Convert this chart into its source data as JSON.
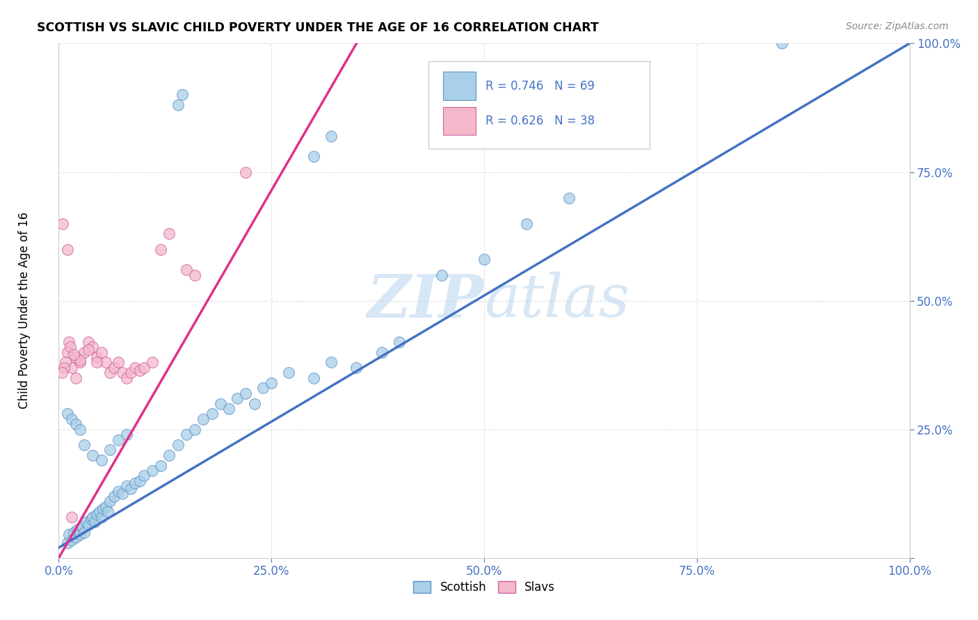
{
  "title": "SCOTTISH VS SLAVIC CHILD POVERTY UNDER THE AGE OF 16 CORRELATION CHART",
  "source": "Source: ZipAtlas.com",
  "ylabel": "Child Poverty Under the Age of 16",
  "xlim": [
    0.0,
    100.0
  ],
  "ylim": [
    0.0,
    100.0
  ],
  "xticks": [
    0.0,
    25.0,
    50.0,
    75.0,
    100.0
  ],
  "yticks": [
    0.0,
    25.0,
    50.0,
    75.0,
    100.0
  ],
  "xticklabels": [
    "0.0%",
    "25.0%",
    "50.0%",
    "75.0%",
    "100.0%"
  ],
  "yticklabels": [
    "",
    "25.0%",
    "50.0%",
    "75.0%",
    "100.0%"
  ],
  "scottish_color": "#a8d0e8",
  "slavs_color": "#f4b8cb",
  "scottish_edge_color": "#6090c8",
  "slavs_edge_color": "#d060a0",
  "scottish_line_color": "#4472c4",
  "slavs_line_color": "#e0308c",
  "tick_color": "#4472c4",
  "R_scottish": 0.746,
  "N_scottish": 69,
  "R_slavs": 0.626,
  "N_slavs": 38,
  "watermark_ZIP": "ZIP",
  "watermark_atlas": "atlas",
  "blue_line_x0": 0.0,
  "blue_line_y0": 2.0,
  "blue_line_x1": 100.0,
  "blue_line_y1": 100.0,
  "pink_line_x0": 0.0,
  "pink_line_y0": 0.0,
  "pink_line_x1": 35.0,
  "pink_line_y1": 100.0,
  "scottish_points": [
    [
      1.0,
      3.0
    ],
    [
      1.2,
      4.5
    ],
    [
      1.5,
      3.5
    ],
    [
      1.8,
      5.0
    ],
    [
      2.0,
      4.0
    ],
    [
      2.2,
      5.5
    ],
    [
      2.5,
      4.5
    ],
    [
      2.8,
      6.0
    ],
    [
      3.0,
      5.0
    ],
    [
      3.2,
      7.0
    ],
    [
      3.5,
      6.5
    ],
    [
      3.8,
      7.5
    ],
    [
      4.0,
      8.0
    ],
    [
      4.2,
      7.0
    ],
    [
      4.5,
      8.5
    ],
    [
      4.8,
      9.0
    ],
    [
      5.0,
      8.0
    ],
    [
      5.2,
      9.5
    ],
    [
      5.5,
      10.0
    ],
    [
      5.8,
      9.0
    ],
    [
      6.0,
      11.0
    ],
    [
      6.5,
      12.0
    ],
    [
      7.0,
      13.0
    ],
    [
      7.5,
      12.5
    ],
    [
      8.0,
      14.0
    ],
    [
      8.5,
      13.5
    ],
    [
      9.0,
      14.5
    ],
    [
      9.5,
      15.0
    ],
    [
      10.0,
      16.0
    ],
    [
      11.0,
      17.0
    ],
    [
      12.0,
      18.0
    ],
    [
      13.0,
      20.0
    ],
    [
      14.0,
      22.0
    ],
    [
      15.0,
      24.0
    ],
    [
      16.0,
      25.0
    ],
    [
      17.0,
      27.0
    ],
    [
      18.0,
      28.0
    ],
    [
      19.0,
      30.0
    ],
    [
      20.0,
      29.0
    ],
    [
      21.0,
      31.0
    ],
    [
      22.0,
      32.0
    ],
    [
      23.0,
      30.0
    ],
    [
      24.0,
      33.0
    ],
    [
      25.0,
      34.0
    ],
    [
      27.0,
      36.0
    ],
    [
      30.0,
      35.0
    ],
    [
      32.0,
      38.0
    ],
    [
      35.0,
      37.0
    ],
    [
      38.0,
      40.0
    ],
    [
      40.0,
      42.0
    ],
    [
      45.0,
      55.0
    ],
    [
      50.0,
      58.0
    ],
    [
      55.0,
      65.0
    ],
    [
      60.0,
      70.0
    ],
    [
      14.0,
      88.0
    ],
    [
      14.5,
      90.0
    ],
    [
      30.0,
      78.0
    ],
    [
      32.0,
      82.0
    ],
    [
      85.0,
      100.0
    ],
    [
      1.0,
      28.0
    ],
    [
      1.5,
      27.0
    ],
    [
      2.0,
      26.0
    ],
    [
      2.5,
      25.0
    ],
    [
      3.0,
      22.0
    ],
    [
      4.0,
      20.0
    ],
    [
      5.0,
      19.0
    ],
    [
      6.0,
      21.0
    ],
    [
      7.0,
      23.0
    ],
    [
      8.0,
      24.0
    ]
  ],
  "slavs_points": [
    [
      0.5,
      65.0
    ],
    [
      1.0,
      60.0
    ],
    [
      1.5,
      37.0
    ],
    [
      2.0,
      35.0
    ],
    [
      2.5,
      38.0
    ],
    [
      3.0,
      40.0
    ],
    [
      3.5,
      42.0
    ],
    [
      4.0,
      41.0
    ],
    [
      4.5,
      39.0
    ],
    [
      5.0,
      40.0
    ],
    [
      5.5,
      38.0
    ],
    [
      6.0,
      36.0
    ],
    [
      6.5,
      37.0
    ],
    [
      7.0,
      38.0
    ],
    [
      7.5,
      36.0
    ],
    [
      8.0,
      35.0
    ],
    [
      8.5,
      36.0
    ],
    [
      9.0,
      37.0
    ],
    [
      9.5,
      36.5
    ],
    [
      10.0,
      37.0
    ],
    [
      11.0,
      38.0
    ],
    [
      12.0,
      60.0
    ],
    [
      13.0,
      63.0
    ],
    [
      15.0,
      56.0
    ],
    [
      16.0,
      55.0
    ],
    [
      22.0,
      75.0
    ],
    [
      1.5,
      8.0
    ],
    [
      1.0,
      40.0
    ],
    [
      1.2,
      42.0
    ],
    [
      1.4,
      41.0
    ],
    [
      2.0,
      39.0
    ],
    [
      2.5,
      38.5
    ],
    [
      3.5,
      40.5
    ],
    [
      0.8,
      38.0
    ],
    [
      0.6,
      37.0
    ],
    [
      0.4,
      36.0
    ],
    [
      1.8,
      39.5
    ],
    [
      4.5,
      38.0
    ]
  ]
}
